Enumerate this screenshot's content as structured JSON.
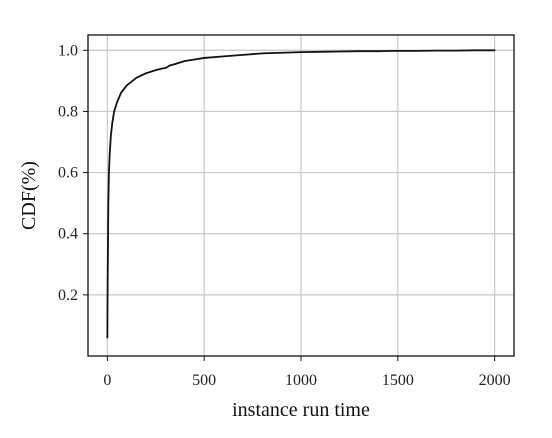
{
  "chart_data": {
    "type": "line",
    "title": "",
    "xlabel": "instance run time",
    "ylabel": "CDF(%)",
    "xlim": [
      -100,
      2100
    ],
    "ylim": [
      0,
      1.05
    ],
    "xticks": [
      "0",
      "500",
      "1000",
      "1500",
      "2000"
    ],
    "yticks": [
      "0.2",
      "0.4",
      "0.6",
      "0.8",
      "1.0"
    ],
    "grid": true,
    "legend": "none",
    "colors": {
      "line": "#111111",
      "grid": "#c8c8c8",
      "axes": "#111111"
    },
    "series": [
      {
        "x": [
          0,
          1,
          3,
          5,
          8,
          12,
          18,
          25,
          35,
          50,
          70,
          100,
          150,
          200,
          250,
          280,
          300,
          310,
          320,
          350,
          400,
          450,
          500,
          600,
          700,
          800,
          900,
          1000,
          1100,
          1200,
          1300,
          1400,
          1500,
          1600,
          1700,
          1800,
          1900,
          2000
        ],
        "y": [
          0.06,
          0.2,
          0.35,
          0.5,
          0.6,
          0.66,
          0.72,
          0.76,
          0.8,
          0.83,
          0.86,
          0.885,
          0.91,
          0.925,
          0.935,
          0.94,
          0.942,
          0.945,
          0.95,
          0.955,
          0.965,
          0.97,
          0.975,
          0.98,
          0.985,
          0.99,
          0.992,
          0.994,
          0.995,
          0.996,
          0.997,
          0.997,
          0.998,
          0.998,
          0.999,
          0.999,
          1.0,
          1.0
        ]
      }
    ]
  }
}
